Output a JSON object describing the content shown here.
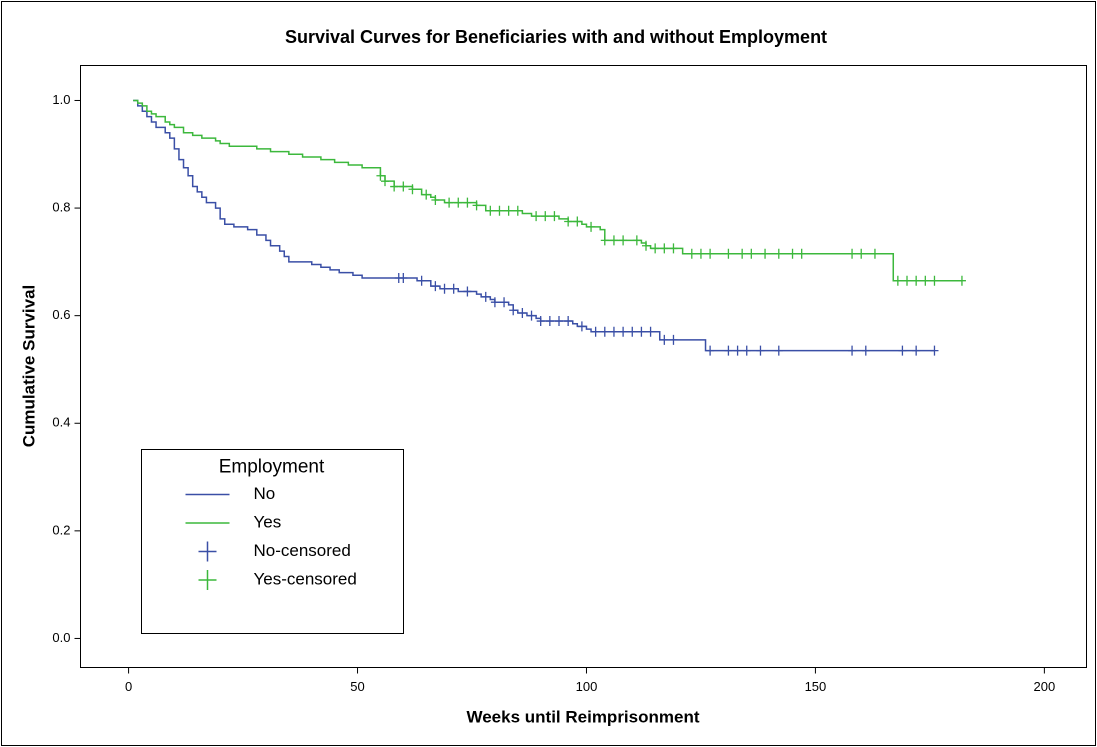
{
  "chart_data": {
    "type": "kaplan-meier",
    "title": "Survival Curves for Beneficiaries with and without Employment",
    "x_label": "Weeks until Reimprisonment",
    "y_label": "Cumulative Survival",
    "xlim": [
      -10.5,
      209.2
    ],
    "ylim": [
      -0.054,
      1.065
    ],
    "xticks": [
      0,
      50,
      100,
      150,
      200
    ],
    "yticks": [
      {
        "value": 0,
        "label": "0.0"
      },
      0.2,
      0.4,
      0.6,
      0.8,
      {
        "value": 1,
        "label": "1.0"
      }
    ],
    "legend_title": "Employment",
    "legend_position": "lower left",
    "series": [
      {
        "name": "No",
        "color": "#3a4fa6",
        "style": "step",
        "x": [
          1,
          2,
          3,
          4,
          5,
          6,
          8,
          9,
          10,
          11,
          12,
          13,
          14,
          15,
          16,
          17,
          19,
          20,
          21,
          23,
          26,
          28,
          30,
          31,
          33,
          34,
          35,
          40,
          42,
          44,
          46,
          49,
          51,
          63,
          66,
          68,
          72,
          76,
          77,
          79,
          80,
          83,
          84,
          85,
          87,
          89,
          90,
          97,
          98,
          100,
          101,
          116,
          126,
          176
        ],
        "values": [
          1.0,
          0.99,
          0.98,
          0.97,
          0.96,
          0.95,
          0.94,
          0.93,
          0.91,
          0.89,
          0.875,
          0.86,
          0.84,
          0.83,
          0.82,
          0.81,
          0.8,
          0.78,
          0.77,
          0.765,
          0.76,
          0.75,
          0.74,
          0.73,
          0.72,
          0.71,
          0.7,
          0.695,
          0.69,
          0.685,
          0.68,
          0.675,
          0.67,
          0.665,
          0.655,
          0.65,
          0.645,
          0.64,
          0.635,
          0.63,
          0.625,
          0.62,
          0.61,
          0.605,
          0.6,
          0.595,
          0.59,
          0.585,
          0.58,
          0.575,
          0.57,
          0.555,
          0.535,
          0.535
        ]
      },
      {
        "name": "Yes",
        "color": "#3cb83c",
        "style": "step",
        "x": [
          1,
          2,
          3,
          4,
          5,
          6,
          8,
          9,
          10,
          12,
          14,
          16,
          19,
          20,
          22,
          28,
          31,
          35,
          38,
          42,
          45,
          48,
          51,
          55,
          56,
          58,
          62,
          64,
          66,
          67,
          69,
          76,
          78,
          86,
          88,
          94,
          96,
          99,
          100,
          103,
          104,
          112,
          113,
          114,
          121,
          167,
          182
        ],
        "values": [
          1.0,
          0.995,
          0.99,
          0.98,
          0.975,
          0.97,
          0.96,
          0.955,
          0.95,
          0.94,
          0.935,
          0.93,
          0.925,
          0.92,
          0.915,
          0.91,
          0.905,
          0.9,
          0.895,
          0.89,
          0.885,
          0.88,
          0.875,
          0.86,
          0.85,
          0.84,
          0.835,
          0.825,
          0.82,
          0.815,
          0.81,
          0.805,
          0.795,
          0.79,
          0.785,
          0.78,
          0.775,
          0.77,
          0.765,
          0.76,
          0.74,
          0.735,
          0.73,
          0.725,
          0.715,
          0.665,
          0.665
        ]
      },
      {
        "name": "No-censored",
        "color": "#3a4fa6",
        "style": "censored",
        "x": [
          59,
          60,
          64,
          67,
          69,
          71,
          74,
          78,
          80,
          82,
          84,
          86,
          88,
          90,
          92,
          94,
          96,
          99,
          102,
          104,
          106,
          108,
          110,
          112,
          114,
          117,
          119,
          127,
          131,
          133,
          135,
          138,
          142,
          158,
          161,
          169,
          172,
          176
        ],
        "values": [
          0.67,
          0.67,
          0.665,
          0.655,
          0.65,
          0.65,
          0.645,
          0.635,
          0.625,
          0.625,
          0.61,
          0.605,
          0.6,
          0.59,
          0.59,
          0.59,
          0.59,
          0.58,
          0.57,
          0.57,
          0.57,
          0.57,
          0.57,
          0.57,
          0.57,
          0.555,
          0.555,
          0.535,
          0.535,
          0.535,
          0.535,
          0.535,
          0.535,
          0.535,
          0.535,
          0.535,
          0.535,
          0.535
        ]
      },
      {
        "name": "Yes-censored",
        "color": "#3cb83c",
        "style": "censored",
        "x": [
          55,
          56,
          58,
          60,
          62,
          65,
          67,
          70,
          72,
          74,
          76,
          79,
          81,
          83,
          85,
          89,
          91,
          93,
          96,
          98,
          101,
          104,
          106,
          108,
          111,
          113,
          115,
          117,
          119,
          123,
          125,
          127,
          131,
          134,
          136,
          139,
          142,
          145,
          147,
          158,
          160,
          163,
          168,
          170,
          172,
          174,
          176,
          182
        ],
        "values": [
          0.86,
          0.85,
          0.84,
          0.84,
          0.835,
          0.825,
          0.815,
          0.81,
          0.81,
          0.81,
          0.805,
          0.795,
          0.795,
          0.795,
          0.795,
          0.785,
          0.785,
          0.785,
          0.775,
          0.775,
          0.765,
          0.74,
          0.74,
          0.74,
          0.74,
          0.73,
          0.725,
          0.725,
          0.725,
          0.715,
          0.715,
          0.715,
          0.715,
          0.715,
          0.715,
          0.715,
          0.715,
          0.715,
          0.715,
          0.715,
          0.715,
          0.715,
          0.665,
          0.665,
          0.665,
          0.665,
          0.665,
          0.665
        ]
      }
    ]
  }
}
